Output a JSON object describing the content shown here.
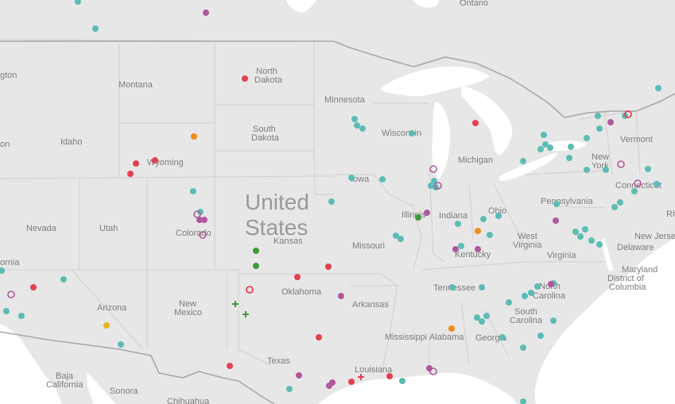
{
  "map": {
    "country_label": [
      "United",
      "States"
    ],
    "colors": {
      "teal": "#5cbcb4",
      "red": "#e3414f",
      "purple": "#b0589e",
      "orange": "#f28a1d",
      "yellow": "#eab31c",
      "green": "#3f9a3a",
      "land": "#e6e6e6",
      "water": "#ffffff",
      "border": "#c2c2c2"
    },
    "labels": [
      {
        "id": "ontario",
        "text": "Ontario"
      },
      {
        "id": "north-dakota-1",
        "text": "North"
      },
      {
        "id": "north-dakota-2",
        "text": "Dakota"
      },
      {
        "id": "montana",
        "text": "Montana"
      },
      {
        "id": "minnesota",
        "text": "Minnesota"
      },
      {
        "id": "south-dakota-1",
        "text": "South"
      },
      {
        "id": "south-dakota-2",
        "text": "Dakota"
      },
      {
        "id": "wisconsin",
        "text": "Wisconsin"
      },
      {
        "id": "idaho",
        "text": "Idaho"
      },
      {
        "id": "wyoming",
        "text": "Wyoming"
      },
      {
        "id": "michigan",
        "text": "Michigan"
      },
      {
        "id": "vermont",
        "text": "Vermont"
      },
      {
        "id": "new-york-1",
        "text": "New"
      },
      {
        "id": "new-york-2",
        "text": "York"
      },
      {
        "id": "iowa",
        "text": "Iowa"
      },
      {
        "id": "connecticut",
        "text": "Connecticut"
      },
      {
        "id": "pennsylvania",
        "text": "Pennsylvania"
      },
      {
        "id": "illinois",
        "text": "Illinois"
      },
      {
        "id": "indiana",
        "text": "Indiana"
      },
      {
        "id": "ohio",
        "text": "Ohio"
      },
      {
        "id": "nevada",
        "text": "Nevada"
      },
      {
        "id": "utah",
        "text": "Utah"
      },
      {
        "id": "colorado",
        "text": "Colorado"
      },
      {
        "id": "kansas",
        "text": "Kansas"
      },
      {
        "id": "missouri",
        "text": "Missouri"
      },
      {
        "id": "west-virginia-1",
        "text": "West"
      },
      {
        "id": "west-virginia-2",
        "text": "Virginia"
      },
      {
        "id": "kentucky",
        "text": "Kentucky"
      },
      {
        "id": "new-jersey",
        "text": "New Jerse"
      },
      {
        "id": "delaware",
        "text": "Delaware"
      },
      {
        "id": "virginia",
        "text": "Virginia"
      },
      {
        "id": "maryland",
        "text": "Maryland"
      },
      {
        "id": "dc-1",
        "text": "District of"
      },
      {
        "id": "dc-2",
        "text": "Columbia"
      },
      {
        "id": "oklahoma",
        "text": "Oklahoma"
      },
      {
        "id": "tennessee",
        "text": "Tennessee"
      },
      {
        "id": "north-carolina-1",
        "text": "North"
      },
      {
        "id": "north-carolina-2",
        "text": "Carolina"
      },
      {
        "id": "arizona",
        "text": "Arizona"
      },
      {
        "id": "new-mexico-1",
        "text": "New"
      },
      {
        "id": "new-mexico-2",
        "text": "Mexico"
      },
      {
        "id": "arkansas",
        "text": "Arkansas"
      },
      {
        "id": "south-carolina-1",
        "text": "South"
      },
      {
        "id": "south-carolina-2",
        "text": "Carolina"
      },
      {
        "id": "mississippi",
        "text": "Mississippi"
      },
      {
        "id": "alabama",
        "text": "Alabama"
      },
      {
        "id": "georgia",
        "text": "Georgia"
      },
      {
        "id": "texas",
        "text": "Texas"
      },
      {
        "id": "louisiana",
        "text": "Louisiana"
      },
      {
        "id": "baja-california-1",
        "text": "Baja"
      },
      {
        "id": "baja-california-2",
        "text": "California"
      },
      {
        "id": "sonora",
        "text": "Sonora"
      },
      {
        "id": "chihuahua",
        "text": "Chihuahua"
      },
      {
        "id": "washington-partial",
        "text": "gton"
      },
      {
        "id": "oregon-partial",
        "text": "on"
      },
      {
        "id": "california-partial",
        "text": "ornia"
      },
      {
        "id": "rhode-island-partial",
        "text": "Rh"
      }
    ]
  }
}
